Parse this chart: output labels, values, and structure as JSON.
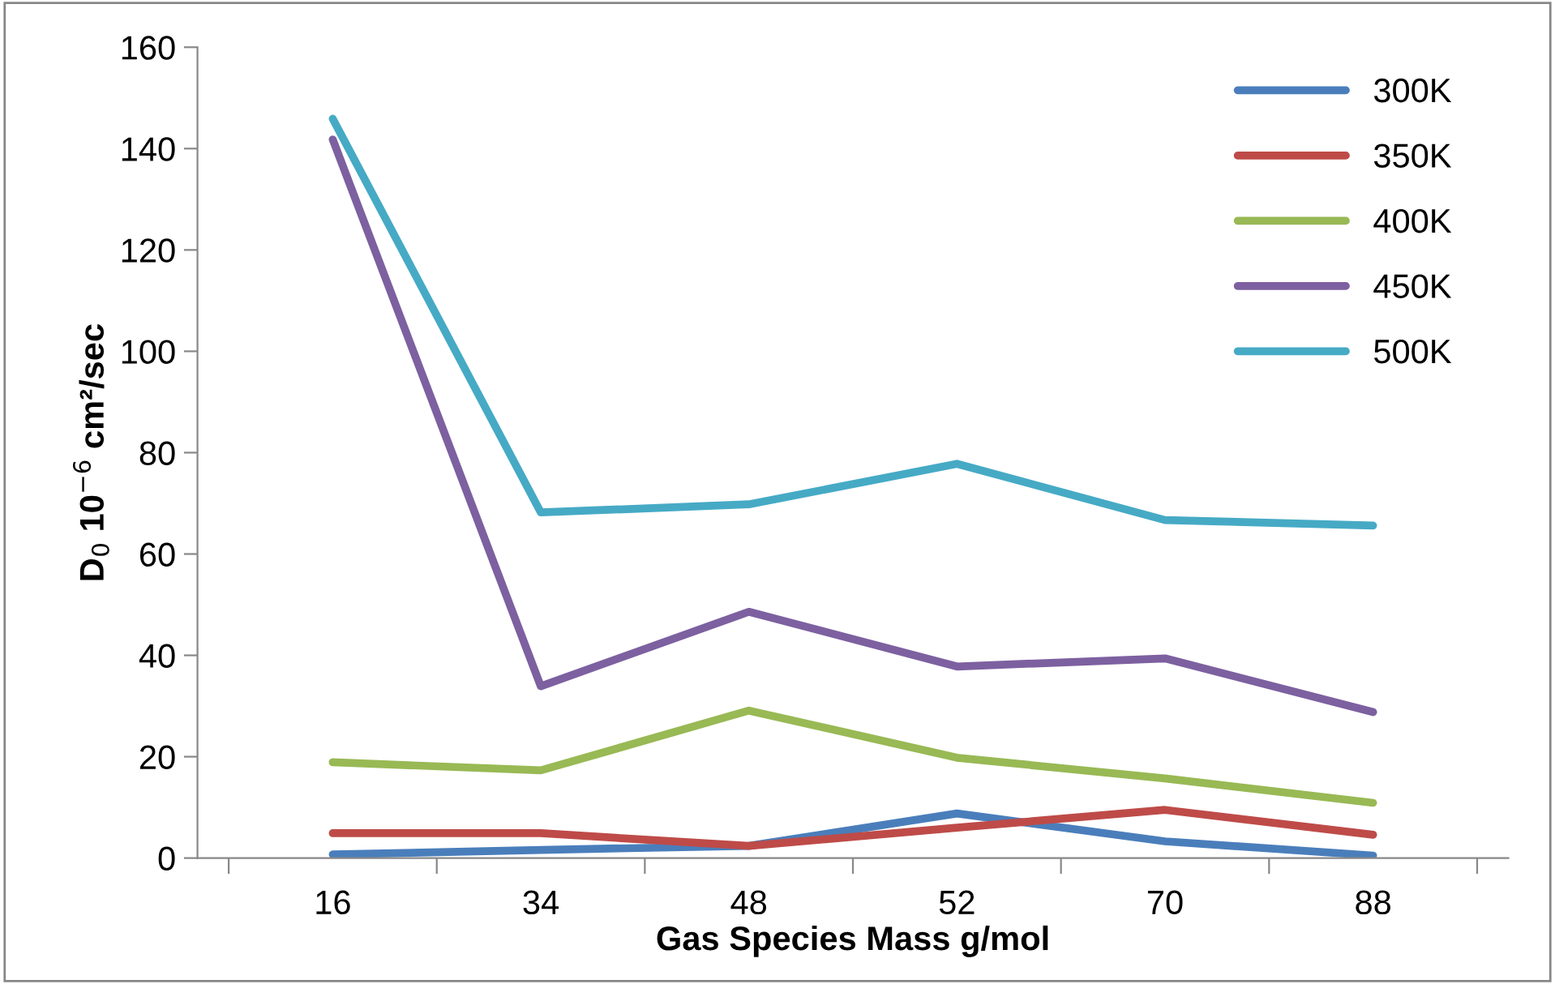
{
  "chart_data": {
    "type": "line",
    "xlabel": "Gas Species Mass g/mol",
    "ylabel": "D$_{0}$ 10$^{−6}$ cm²/sec",
    "categories": [
      "16",
      "34",
      "48",
      "52",
      "70",
      "88"
    ],
    "series": [
      {
        "name": "300K",
        "color": "#4a7ebb",
        "values": [
          0.7,
          1.6,
          2.4,
          8.8,
          3.3,
          0.5
        ]
      },
      {
        "name": "350K",
        "color": "#be4b48",
        "values": [
          4.9,
          4.9,
          2.4,
          6.0,
          9.5,
          4.6
        ]
      },
      {
        "name": "400K",
        "color": "#98b954",
        "values": [
          18.9,
          17.3,
          29.1,
          19.8,
          15.7,
          10.9
        ]
      },
      {
        "name": "450K",
        "color": "#7d60a0",
        "values": [
          141.8,
          33.9,
          48.6,
          37.8,
          39.4,
          28.8
        ]
      },
      {
        "name": "500K",
        "color": "#46aac5",
        "values": [
          145.9,
          68.2,
          69.8,
          77.8,
          66.7,
          65.6
        ]
      }
    ],
    "ylim": [
      0,
      160
    ],
    "yticks": [
      0,
      20,
      40,
      60,
      80,
      100,
      120,
      140,
      160
    ],
    "grid": false,
    "legend": "top right",
    "marker": "none",
    "line_style": "solid"
  }
}
